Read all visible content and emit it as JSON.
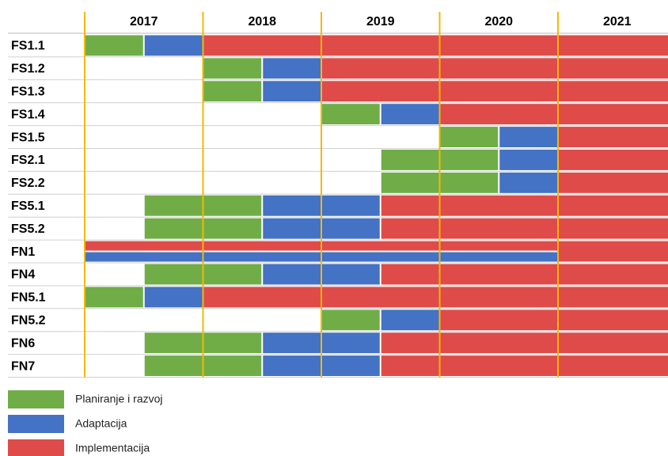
{
  "chart_data": {
    "type": "gantt",
    "categories": [
      "2017",
      "2018",
      "2019",
      "2020",
      "2021"
    ],
    "xlim": [
      2017,
      2022
    ],
    "phases": [
      {
        "name": "Planiranje i razvoj",
        "color": "#70ad47"
      },
      {
        "name": "Adaptacija",
        "color": "#4472c4"
      },
      {
        "name": "Implementacija",
        "color": "#df4b49"
      }
    ],
    "tasks": [
      {
        "name": "FS1.1",
        "segments": [
          {
            "phase": 0,
            "start": 2017,
            "end": 2017.5
          },
          {
            "phase": 1,
            "start": 2017.5,
            "end": 2018
          },
          {
            "phase": 2,
            "start": 2018,
            "end": 2022
          }
        ]
      },
      {
        "name": "FS1.2",
        "segments": [
          {
            "phase": 0,
            "start": 2018,
            "end": 2018.5
          },
          {
            "phase": 1,
            "start": 2018.5,
            "end": 2019
          },
          {
            "phase": 2,
            "start": 2019,
            "end": 2022
          }
        ]
      },
      {
        "name": "FS1.3",
        "segments": [
          {
            "phase": 0,
            "start": 2018,
            "end": 2018.5
          },
          {
            "phase": 1,
            "start": 2018.5,
            "end": 2019
          },
          {
            "phase": 2,
            "start": 2019,
            "end": 2022
          }
        ]
      },
      {
        "name": "FS1.4",
        "segments": [
          {
            "phase": 0,
            "start": 2019,
            "end": 2019.5
          },
          {
            "phase": 1,
            "start": 2019.5,
            "end": 2020
          },
          {
            "phase": 2,
            "start": 2020,
            "end": 2022
          }
        ]
      },
      {
        "name": "FS1.5",
        "segments": [
          {
            "phase": 0,
            "start": 2020,
            "end": 2020.5
          },
          {
            "phase": 1,
            "start": 2020.5,
            "end": 2021
          },
          {
            "phase": 2,
            "start": 2021,
            "end": 2022
          }
        ]
      },
      {
        "name": "FS2.1",
        "segments": [
          {
            "phase": 0,
            "start": 2019.5,
            "end": 2020.5
          },
          {
            "phase": 1,
            "start": 2020.5,
            "end": 2021
          },
          {
            "phase": 2,
            "start": 2021,
            "end": 2022
          }
        ]
      },
      {
        "name": "FS2.2",
        "segments": [
          {
            "phase": 0,
            "start": 2019.5,
            "end": 2020.5
          },
          {
            "phase": 1,
            "start": 2020.5,
            "end": 2021
          },
          {
            "phase": 2,
            "start": 2021,
            "end": 2022
          }
        ]
      },
      {
        "name": "FS5.1",
        "segments": [
          {
            "phase": 0,
            "start": 2017.5,
            "end": 2018.5
          },
          {
            "phase": 1,
            "start": 2018.5,
            "end": 2019.5
          },
          {
            "phase": 2,
            "start": 2019.5,
            "end": 2022
          }
        ]
      },
      {
        "name": "FS5.2",
        "segments": [
          {
            "phase": 0,
            "start": 2017.5,
            "end": 2018.5
          },
          {
            "phase": 1,
            "start": 2018.5,
            "end": 2019.5
          },
          {
            "phase": 2,
            "start": 2019.5,
            "end": 2022
          }
        ]
      },
      {
        "name": "FN1",
        "segments": [
          {
            "phase": 2,
            "start": 2017,
            "end": 2021,
            "lane": "top"
          },
          {
            "phase": 1,
            "start": 2017,
            "end": 2021,
            "lane": "bottom"
          },
          {
            "phase": 2,
            "start": 2021,
            "end": 2022
          }
        ]
      },
      {
        "name": "FN4",
        "segments": [
          {
            "phase": 0,
            "start": 2017.5,
            "end": 2018.5
          },
          {
            "phase": 1,
            "start": 2018.5,
            "end": 2019.5
          },
          {
            "phase": 2,
            "start": 2019.5,
            "end": 2022
          }
        ]
      },
      {
        "name": "FN5.1",
        "segments": [
          {
            "phase": 0,
            "start": 2017,
            "end": 2017.5
          },
          {
            "phase": 1,
            "start": 2017.5,
            "end": 2018
          },
          {
            "phase": 2,
            "start": 2018,
            "end": 2022
          }
        ]
      },
      {
        "name": "FN5.2",
        "segments": [
          {
            "phase": 0,
            "start": 2019,
            "end": 2019.5
          },
          {
            "phase": 1,
            "start": 2019.5,
            "end": 2020
          },
          {
            "phase": 2,
            "start": 2020,
            "end": 2022
          }
        ]
      },
      {
        "name": "FN6",
        "segments": [
          {
            "phase": 0,
            "start": 2017.5,
            "end": 2018.5
          },
          {
            "phase": 1,
            "start": 2018.5,
            "end": 2019.5
          },
          {
            "phase": 2,
            "start": 2019.5,
            "end": 2022
          }
        ]
      },
      {
        "name": "FN7",
        "segments": [
          {
            "phase": 0,
            "start": 2017.5,
            "end": 2018.5
          },
          {
            "phase": 1,
            "start": 2018.5,
            "end": 2019.5
          },
          {
            "phase": 2,
            "start": 2019.5,
            "end": 2022
          }
        ]
      }
    ]
  }
}
